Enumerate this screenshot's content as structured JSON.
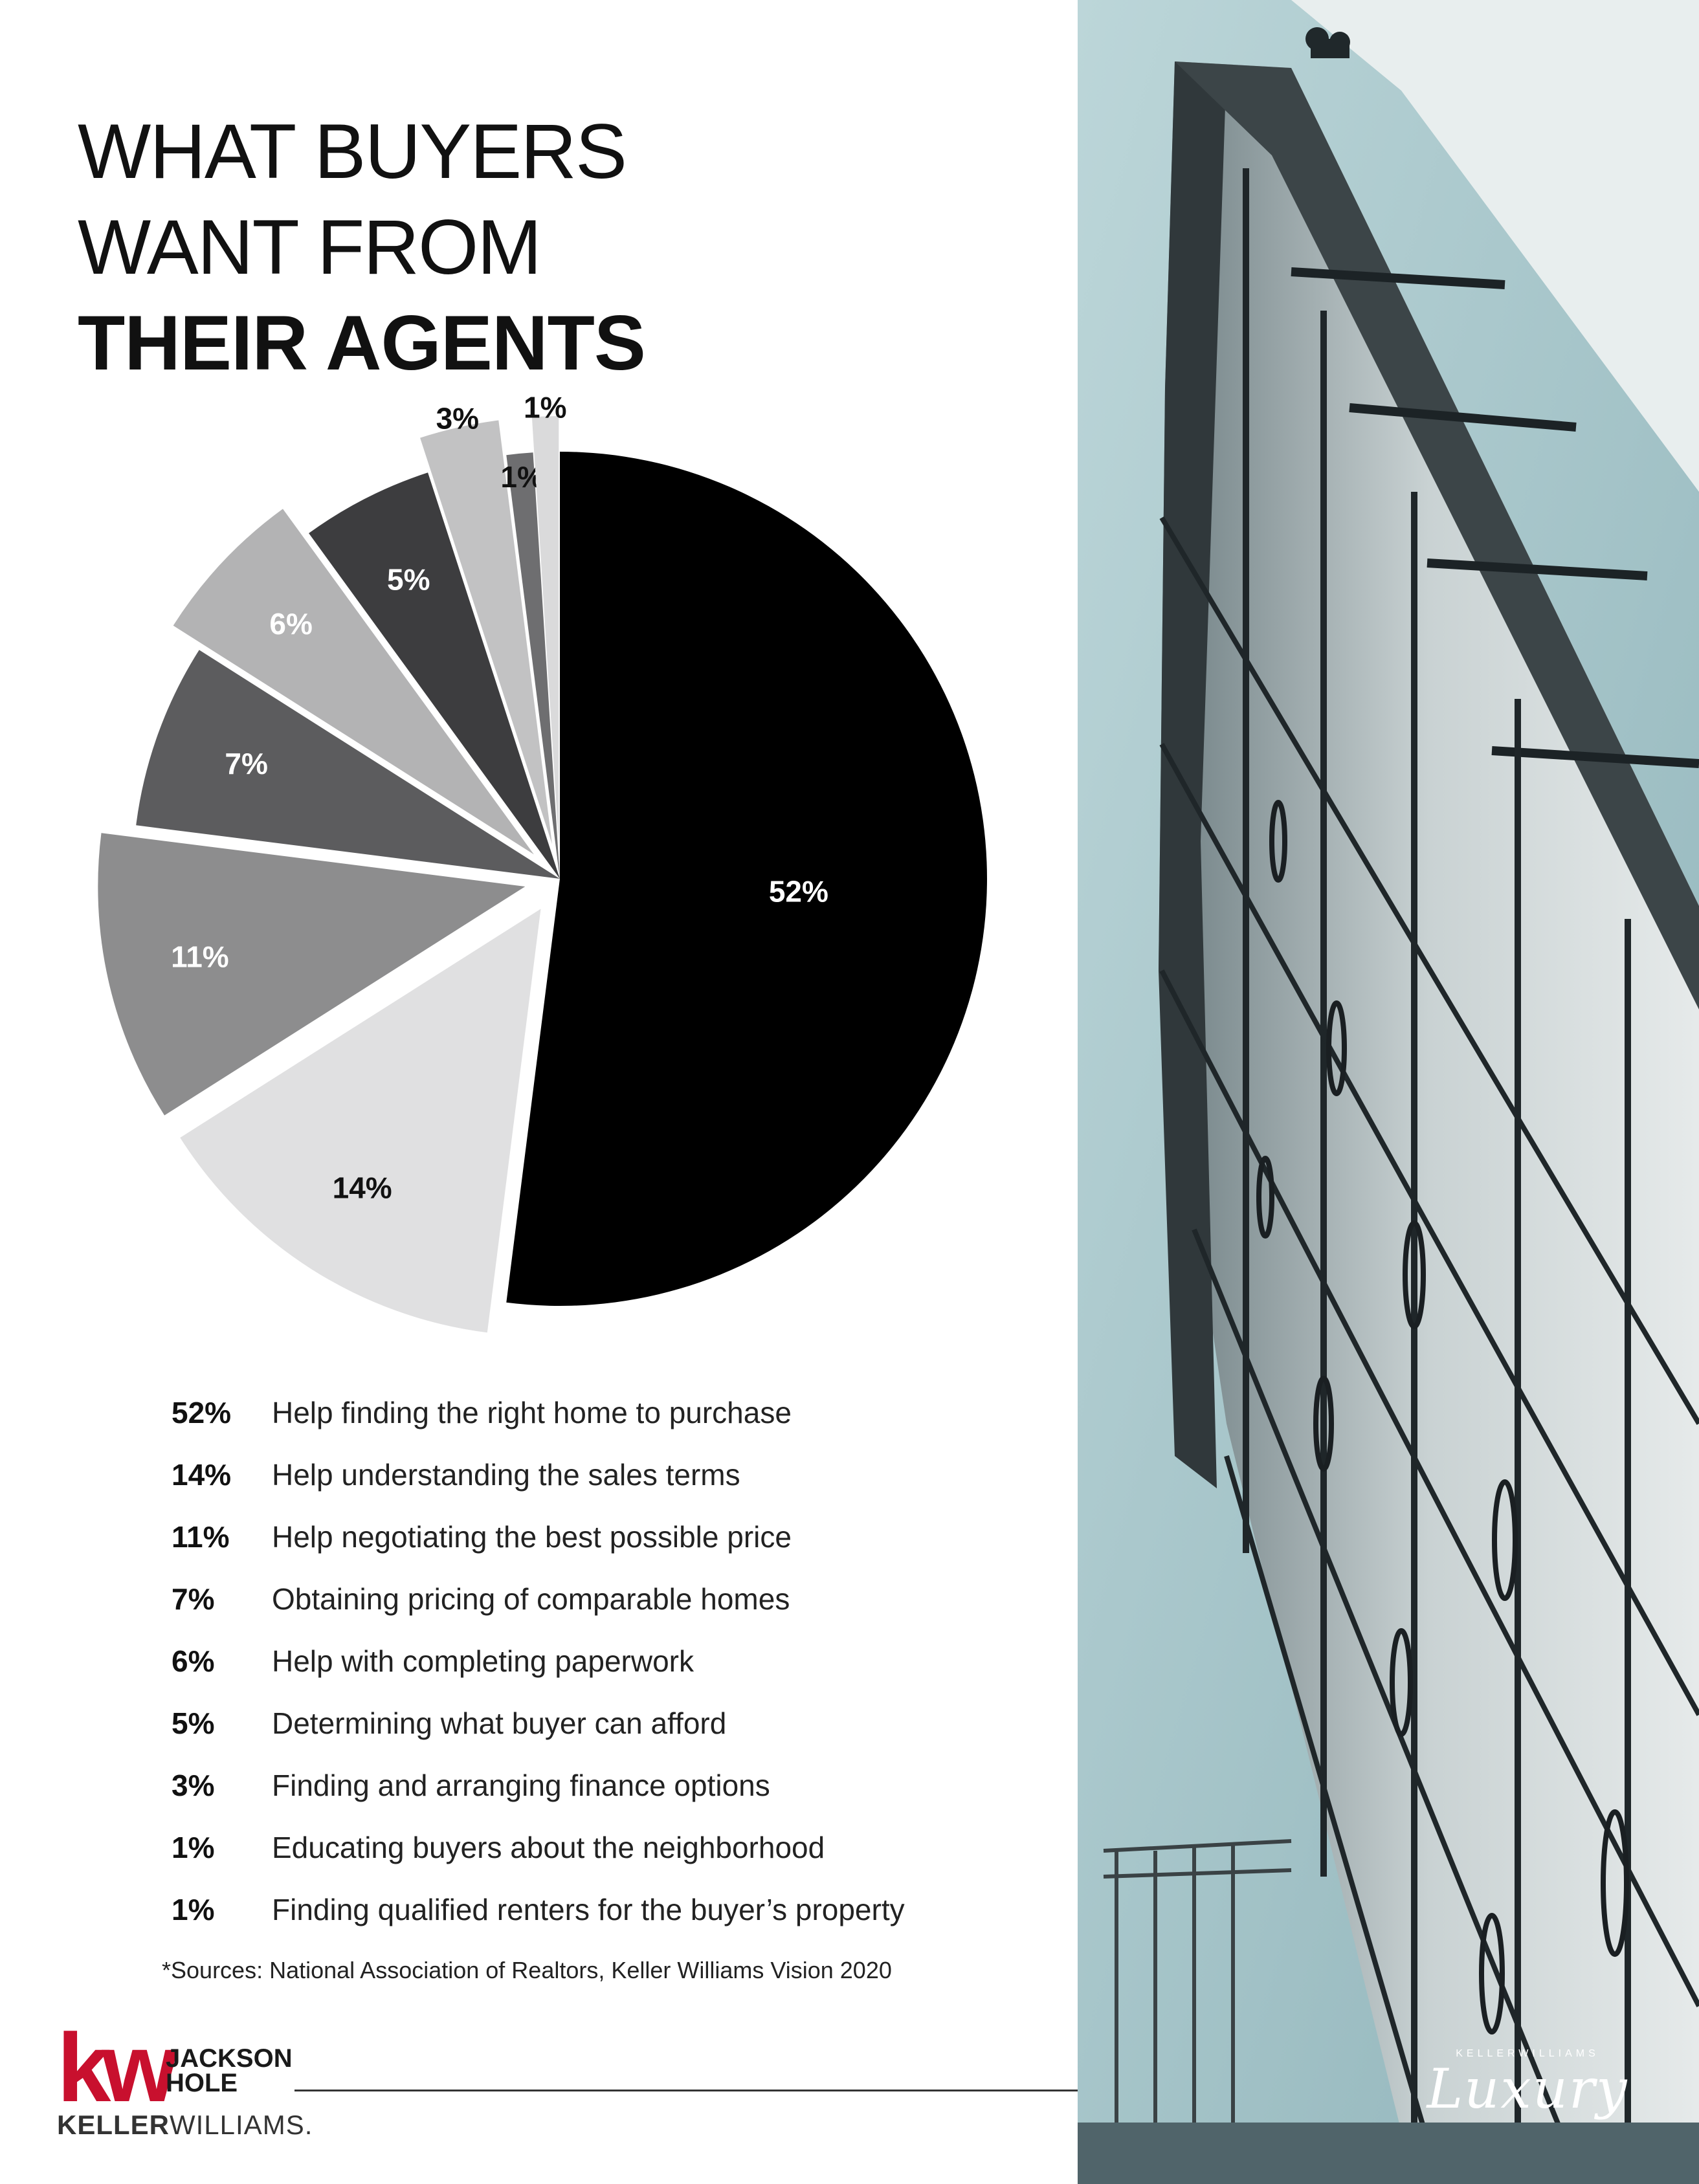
{
  "header": {
    "title_line1": "WHAT BUYERS",
    "title_line2": "WANT FROM",
    "title_line3": "THEIR AGENTS"
  },
  "chart_data": {
    "type": "pie",
    "title": "WHAT BUYERS WANT FROM THEIR AGENTS",
    "slices": [
      {
        "label": "Help finding the right home to purchase",
        "value": 52,
        "value_label": "52%",
        "color": "#000000",
        "text_color": "#ffffff",
        "exploded": false
      },
      {
        "label": "Help understanding the sales terms",
        "value": 14,
        "value_label": "14%",
        "color": "#e0e0e1",
        "text_color": "#111111",
        "exploded": true
      },
      {
        "label": "Help negotiating the best possible price",
        "value": 11,
        "value_label": "11%",
        "color": "#8d8d8e",
        "text_color": "#ffffff",
        "exploded": true
      },
      {
        "label": "Obtaining pricing of comparable homes",
        "value": 7,
        "value_label": "7%",
        "color": "#5c5c5e",
        "text_color": "#ffffff",
        "exploded": false
      },
      {
        "label": "Help with completing paperwork",
        "value": 6,
        "value_label": "6%",
        "color": "#b3b3b4",
        "text_color": "#ffffff",
        "exploded": true
      },
      {
        "label": "Determining what buyer can afford",
        "value": 5,
        "value_label": "5%",
        "color": "#3d3d3f",
        "text_color": "#ffffff",
        "exploded": false
      },
      {
        "label": "Finding and arranging finance options",
        "value": 3,
        "value_label": "3%",
        "color": "#c2c2c3",
        "text_color": "#111111",
        "exploded": true
      },
      {
        "label": "Educating buyers about the neighborhood",
        "value": 1,
        "value_label": "1%",
        "color": "#6e6e70",
        "text_color": "#111111",
        "exploded": false
      },
      {
        "label": "Finding qualified renters for the buyer’s property",
        "value": 1,
        "value_label": "1%",
        "color": "#dadadb",
        "text_color": "#111111",
        "exploded": true
      }
    ]
  },
  "legend": {
    "items": [
      {
        "pct": "52%",
        "text": "Help finding the right home to purchase"
      },
      {
        "pct": "14%",
        "text": "Help understanding the sales terms"
      },
      {
        "pct": "11%",
        "text": "Help negotiating the best possible price"
      },
      {
        "pct": "7%",
        "text": "Obtaining pricing of comparable homes"
      },
      {
        "pct": "6%",
        "text": "Help with completing paperwork"
      },
      {
        "pct": "5%",
        "text": "Determining what buyer can afford"
      },
      {
        "pct": "3%",
        "text": "Finding and arranging finance options"
      },
      {
        "pct": "1%",
        "text": "Educating buyers about the neighborhood"
      },
      {
        "pct": "1%",
        "text": "Finding qualified renters for the buyer’s property"
      }
    ]
  },
  "source": "*Sources: National Association of Realtors, Keller Williams Vision 2020",
  "footer": {
    "kw_mark": "kw",
    "office_line1": "JACKSON",
    "office_line2": "HOLE",
    "brand_part1": "KELLER",
    "brand_part2": "WILLIAMS.",
    "luxury_small": "KELLERWILLIAMS",
    "luxury_script": "Luxury"
  },
  "colors": {
    "brand_red": "#c8102e",
    "sky": "#a9c7cc"
  },
  "photo": {
    "description_icon": "building-photo"
  }
}
